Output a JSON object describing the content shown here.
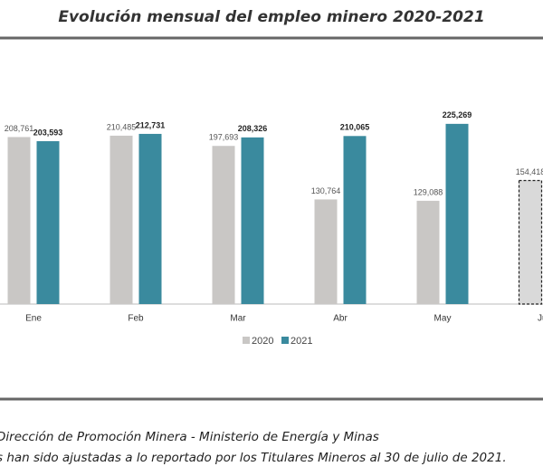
{
  "chart_data": {
    "type": "bar",
    "title": "Evolución mensual del empleo minero 2020-2021",
    "categories": [
      "Ene",
      "Feb",
      "Mar",
      "Abr",
      "May",
      "Jun"
    ],
    "series": [
      {
        "name": "2020",
        "color": "#c9c7c5",
        "values": [
          208761,
          210485,
          197693,
          130764,
          129088,
          154418
        ],
        "value_labels": [
          "208,761",
          "210,485",
          "197,693",
          "130,764",
          "129,088",
          "154,418"
        ],
        "styles": [
          "solid",
          "solid",
          "solid",
          "solid",
          "solid",
          "dashed"
        ]
      },
      {
        "name": "2021",
        "color": "#3a8a9e",
        "values": [
          203593,
          212731,
          208326,
          210065,
          225269,
          null
        ],
        "value_labels": [
          "203,593",
          "212,731",
          "208,326",
          "210,065",
          "225,269",
          null
        ],
        "styles": [
          "solid",
          "solid",
          "solid",
          "solid",
          "solid",
          "solid"
        ]
      }
    ],
    "ylim": [
      0,
      250000
    ],
    "notes": [
      "Dirección de Promoción Minera - Ministerio de Energía y Minas",
      "s han sido ajustadas a lo reportado por los Titulares Mineros al 30 de julio de 2021."
    ]
  }
}
